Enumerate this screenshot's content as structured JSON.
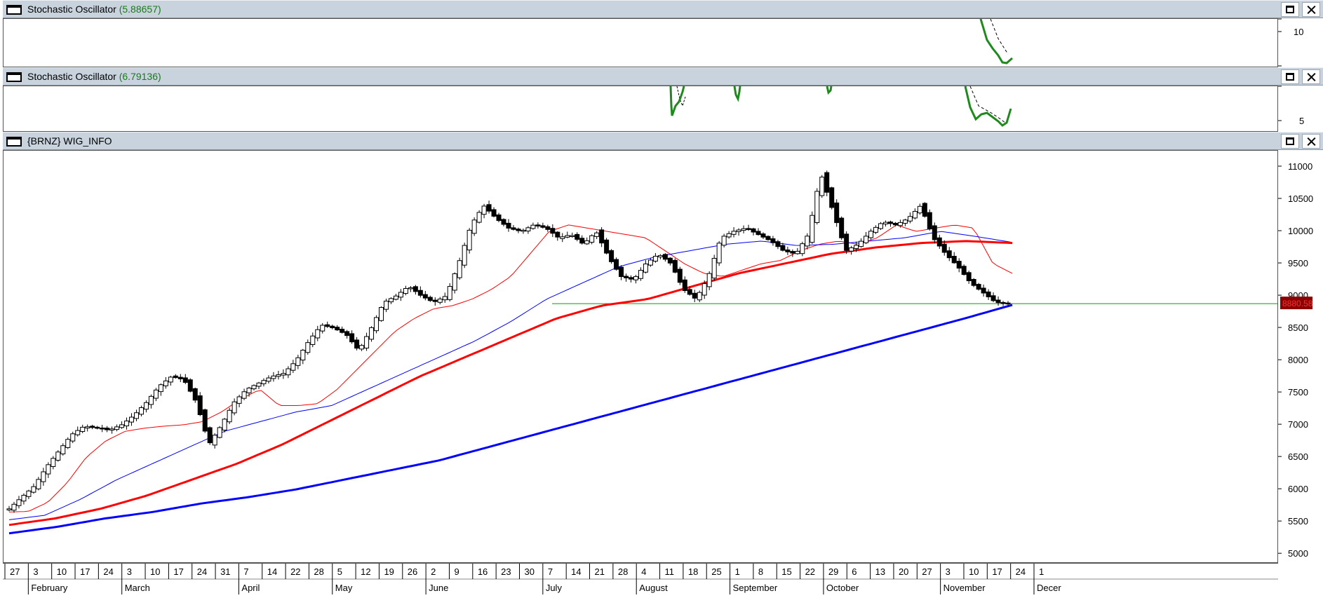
{
  "pane1": {
    "title": "Stochastic Oscillator",
    "value": "(5.88657)",
    "tick": "10"
  },
  "pane2": {
    "title": "Stochastic Oscillator",
    "value": "(6.79136)",
    "tick": "5"
  },
  "pane3": {
    "title": "{BRNZ} WIG_INFO"
  },
  "colors": {
    "stoch": "#1e8a1e",
    "candle_up": "#ffffff",
    "candle_down": "#000000",
    "ma_red": "#ff0000",
    "ma_blue": "#0000ff",
    "support": "#00a000",
    "price_tag": "#8b0000"
  },
  "chart_data": {
    "type": "candlestick",
    "symbol": "{BRNZ} WIG_INFO",
    "ylim": [
      4850,
      11250
    ],
    "yticks": [
      5000,
      5500,
      6000,
      6500,
      7000,
      7500,
      8000,
      8500,
      9000,
      9500,
      10000,
      10500,
      11000
    ],
    "last_price": "8880.58",
    "support_level": 8880,
    "x_day_labels": [
      "27",
      "3",
      "10",
      "17",
      "24",
      "3",
      "10",
      "17",
      "24",
      "31",
      "7",
      "14",
      "22",
      "28",
      "5",
      "12",
      "19",
      "26",
      "2",
      "9",
      "16",
      "23",
      "30",
      "7",
      "14",
      "21",
      "28",
      "4",
      "11",
      "18",
      "25",
      "1",
      "8",
      "15",
      "22",
      "29",
      "6",
      "13",
      "20",
      "27",
      "3",
      "10",
      "17",
      "24",
      "1"
    ],
    "x_month_labels": [
      "February",
      "March",
      "April",
      "May",
      "June",
      "July",
      "August",
      "September",
      "October",
      "November",
      "Decer"
    ],
    "price_path": [
      5700,
      5880,
      6050,
      6350,
      6600,
      6850,
      6980,
      6950,
      6920,
      7000,
      7150,
      7350,
      7600,
      7750,
      7700,
      7350,
      6700,
      7000,
      7350,
      7550,
      7650,
      7750,
      7800,
      8000,
      8300,
      8550,
      8500,
      8400,
      8150,
      8500,
      8900,
      9000,
      9150,
      9000,
      8900,
      9000,
      9500,
      10100,
      10400,
      10200,
      10050,
      10000,
      10100,
      10050,
      9900,
      9950,
      9800,
      10000,
      9600,
      9300,
      9250,
      9500,
      9650,
      9500,
      9100,
      8950,
      9300,
      9900,
      10000,
      10050,
      9950,
      9850,
      9700,
      9650,
      9950,
      10900,
      10300,
      9700,
      9800,
      10000,
      10150,
      10100,
      10200,
      10400,
      9900,
      9650,
      9450,
      9200,
      9050,
      8900,
      8880
    ],
    "series": [
      {
        "name": "",
        "type": "ma",
        "color": "#ff0000",
        "width": 1,
        "path": [
          5650,
          5660,
          5800,
          6100,
          6500,
          6750,
          6900,
          6950,
          6980,
          7000,
          7050,
          7200,
          7400,
          7550,
          7300,
          7300,
          7330,
          7550,
          7850,
          8150,
          8450,
          8650,
          8800,
          8850,
          8950,
          9100,
          9300,
          9650,
          10000,
          10100,
          10050,
          10000,
          9950,
          9900,
          9700,
          9500,
          9350,
          9300,
          9400,
          9500,
          9550,
          9700,
          9800,
          9850,
          9800,
          9900,
          10100,
          10000,
          10050,
          10100,
          10050,
          9500,
          9350
        ]
      },
      {
        "name": "",
        "type": "ma",
        "color": "#0000ff",
        "width": 1,
        "path": [
          5530,
          5600,
          5850,
          6150,
          6400,
          6650,
          6900,
          7050,
          7200,
          7300,
          7550,
          7800,
          8050,
          8300,
          8600,
          8950,
          9200,
          9450,
          9600,
          9700,
          9800,
          9850,
          9780,
          9800,
          9850,
          9900,
          10000,
          9920,
          9830
        ]
      },
      {
        "name": "",
        "type": "ma",
        "color": "#ff0000",
        "width": 3,
        "path": [
          5450,
          5550,
          5700,
          5900,
          6150,
          6400,
          6700,
          7050,
          7400,
          7750,
          8050,
          8350,
          8650,
          8850,
          8950,
          9150,
          9350,
          9500,
          9650,
          9750,
          9820,
          9850,
          9820
        ]
      },
      {
        "name": "",
        "type": "ma",
        "color": "#0000ff",
        "width": 3,
        "path": [
          5320,
          5420,
          5550,
          5650,
          5780,
          5880,
          6000,
          6150,
          6300,
          6450,
          6650,
          6850,
          7050,
          7250,
          7450,
          7650,
          7850,
          8050,
          8250,
          8450,
          8650,
          8860
        ]
      }
    ],
    "stochastic_1": {
      "ylim": [
        0,
        20
      ],
      "tick": 10
    },
    "stochastic_2": {
      "ylim": [
        0,
        15
      ],
      "tick": 5
    }
  }
}
